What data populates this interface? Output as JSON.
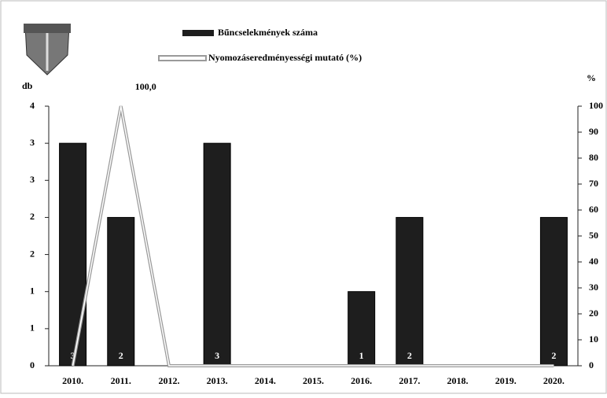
{
  "chart_data": {
    "type": "bar_line",
    "categories": [
      "2010.",
      "2011.",
      "2012.",
      "2013.",
      "2014.",
      "2015.",
      "2016.",
      "2017.",
      "2018.",
      "2019.",
      "2020."
    ],
    "y_label": "db",
    "y2_label": "%",
    "ylim": [
      0,
      3.5
    ],
    "yticks": [
      0,
      {
        "value": 0.5,
        "label": "1"
      },
      {
        "value": 1,
        "label": "1"
      },
      {
        "value": 1.5,
        "label": "2"
      },
      {
        "value": 2,
        "label": "2"
      },
      {
        "value": 2.5,
        "label": "3"
      },
      {
        "value": 3,
        "label": "3"
      },
      {
        "value": 3.5,
        "label": "4"
      }
    ],
    "y2lim": [
      0,
      100
    ],
    "y2ticks": [
      0,
      10,
      20,
      30,
      40,
      50,
      60,
      70,
      80,
      90,
      100
    ],
    "legend": "top",
    "series": [
      {
        "name": "Bűncselekmények száma",
        "type": "bar",
        "color": "#1e1e1e",
        "values": [
          3,
          2,
          0,
          3,
          0,
          0,
          1,
          2,
          0,
          0,
          2
        ]
      },
      {
        "name": "Nyomozáseredményességi mutató (%)",
        "type": "line",
        "axis": "y2",
        "color": "#9a9a9a",
        "values": [
          0,
          100,
          0,
          0,
          0,
          0,
          0,
          0,
          0,
          0,
          0
        ],
        "value_labels": [
          null,
          "100,0",
          null,
          null,
          null,
          null,
          null,
          null,
          null,
          null,
          null
        ]
      }
    ]
  }
}
